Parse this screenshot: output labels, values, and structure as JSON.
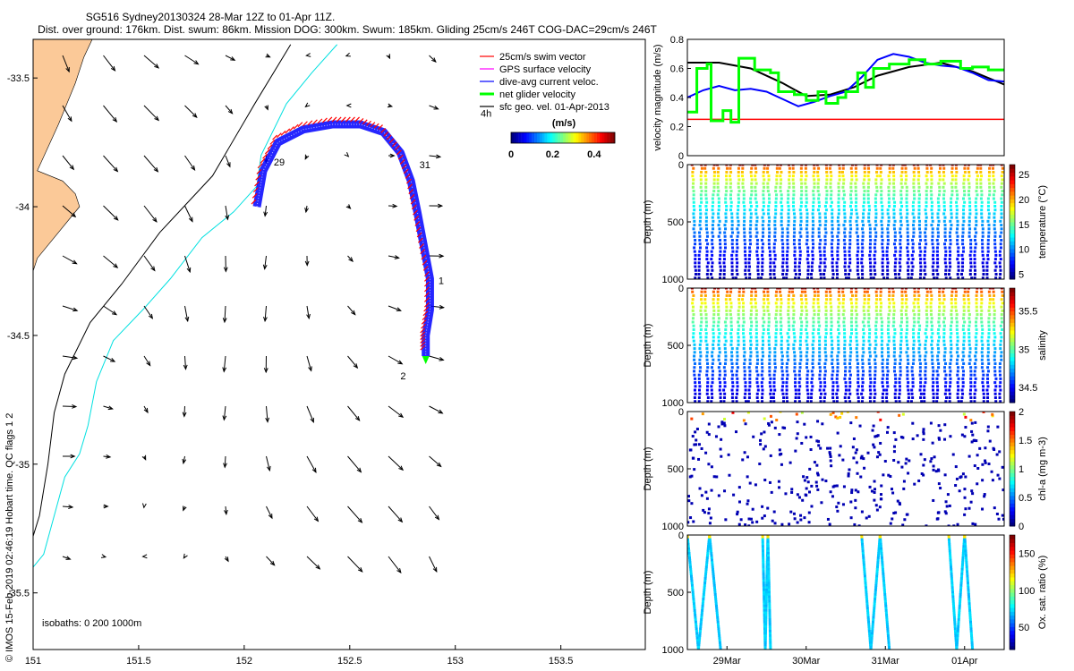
{
  "title": {
    "line1": "SG516 Sydney20130324 28-Mar 12Z to 01-Apr 11Z.",
    "line2": "Dist. over ground: 176km. Dist. swum: 86km. Mission DOG: 300km. Swum: 185km. Gliding 25cm/s 246T COG-DAC=29cm/s 246T"
  },
  "credit": "© IMOS 15-Feb-2019 02:46:19 Hobart time. QC flags 1  2",
  "colors": {
    "coast": "#fbc998",
    "swim": "#ff0000",
    "gps": "#ff00ff",
    "dac": "#0000ff",
    "net": "#00ff00",
    "sfc": "#000000",
    "isobath200": "#000000",
    "isobath1000": "#00e0e0"
  },
  "chart_data": [
    {
      "type": "scatter",
      "name": "map",
      "xlim": [
        151,
        153.9
      ],
      "ylim": [
        -35.72,
        -33.35
      ],
      "xticks": [
        "151",
        "151.5",
        "152",
        "152.5",
        "153",
        "153.5"
      ],
      "xtick_values": [
        151,
        151.5,
        152,
        152.5,
        153,
        153.5
      ],
      "yticks": [
        "-33.5",
        "-34",
        "-34.5",
        "-35",
        "-35.5"
      ],
      "ytick_values": [
        -33.5,
        -34,
        -34.5,
        -35,
        -35.5
      ],
      "legend": [
        {
          "label": "25cm/s swim vector",
          "color": "#ff0000"
        },
        {
          "label": "GPS surface velocity",
          "color": "#ff00ff"
        },
        {
          "label": "dive-avg current veloc.",
          "color": "#0000ff"
        },
        {
          "label": "net glider velocity",
          "color": "#00ff00"
        },
        {
          "label": "sfc geo. vel. 01-Apr-2013",
          "color": "#000000"
        }
      ],
      "colorbar": {
        "label": "(m/s)",
        "ticks": [
          "0",
          "0.2",
          "0.4"
        ],
        "tick_values": [
          0,
          0.2,
          0.4
        ],
        "range": [
          0,
          0.5
        ]
      },
      "annotations": [
        {
          "text": "4h",
          "lon": 153.12,
          "lat": -33.65
        },
        {
          "text": "29",
          "lon": 152.14,
          "lat": -33.84
        },
        {
          "text": "31",
          "lon": 152.83,
          "lat": -33.85
        },
        {
          "text": "1",
          "lon": 152.92,
          "lat": -34.3
        },
        {
          "text": "2",
          "lon": 152.74,
          "lat": -34.67
        }
      ],
      "isobath_label": "isobaths: 0   200   1000m",
      "track": [
        [
          152.06,
          -34.0
        ],
        [
          152.09,
          -33.86
        ],
        [
          152.16,
          -33.75
        ],
        [
          152.28,
          -33.7
        ],
        [
          152.42,
          -33.68
        ],
        [
          152.55,
          -33.68
        ],
        [
          152.66,
          -33.71
        ],
        [
          152.74,
          -33.79
        ],
        [
          152.79,
          -33.9
        ],
        [
          152.82,
          -34.02
        ],
        [
          152.85,
          -34.15
        ],
        [
          152.88,
          -34.28
        ],
        [
          152.88,
          -34.4
        ],
        [
          152.86,
          -34.5
        ],
        [
          152.86,
          -34.58
        ]
      ],
      "isobath_200": [
        [
          152.22,
          -33.37
        ],
        [
          152.05,
          -33.6
        ],
        [
          151.85,
          -33.88
        ],
        [
          151.6,
          -34.1
        ],
        [
          151.42,
          -34.3
        ],
        [
          151.27,
          -34.45
        ],
        [
          151.15,
          -34.65
        ],
        [
          151.1,
          -34.8
        ],
        [
          151.07,
          -35.0
        ],
        [
          151.03,
          -35.2
        ],
        [
          151.0,
          -35.28
        ]
      ],
      "isobath_1000": [
        [
          152.44,
          -33.37
        ],
        [
          152.32,
          -33.48
        ],
        [
          152.2,
          -33.6
        ],
        [
          152.08,
          -33.8
        ],
        [
          152.06,
          -33.92
        ],
        [
          151.95,
          -34.02
        ],
        [
          151.8,
          -34.12
        ],
        [
          151.65,
          -34.28
        ],
        [
          151.52,
          -34.4
        ],
        [
          151.38,
          -34.52
        ],
        [
          151.3,
          -34.68
        ],
        [
          151.26,
          -34.85
        ],
        [
          151.22,
          -34.96
        ],
        [
          151.15,
          -35.05
        ],
        [
          151.1,
          -35.2
        ],
        [
          151.05,
          -35.35
        ],
        [
          151.0,
          -35.4
        ]
      ],
      "coastline": [
        [
          151.0,
          -33.35
        ],
        [
          151.28,
          -33.35
        ],
        [
          151.24,
          -33.42
        ],
        [
          151.2,
          -33.52
        ],
        [
          151.12,
          -33.68
        ],
        [
          151.02,
          -33.86
        ],
        [
          151.14,
          -33.9
        ],
        [
          151.2,
          -33.95
        ],
        [
          151.22,
          -34.0
        ],
        [
          151.12,
          -34.1
        ],
        [
          151.02,
          -34.2
        ],
        [
          151.0,
          -34.25
        ]
      ]
    },
    {
      "type": "line",
      "name": "velocity",
      "ylabel": "velocity magnitude (m/s)",
      "ylim": [
        0,
        0.8
      ],
      "yticks": [
        "0",
        "0.2",
        "0.4",
        "0.6",
        "0.8"
      ],
      "ytick_values": [
        0,
        0.2,
        0.4,
        0.6,
        0.8
      ],
      "xlim": [
        0,
        4
      ],
      "series": [
        {
          "color": "#000000",
          "x": [
            0,
            0.4,
            0.8,
            1.2,
            1.5,
            1.8,
            2.1,
            2.4,
            2.8,
            3.2,
            3.6,
            4.0
          ],
          "y": [
            0.64,
            0.64,
            0.6,
            0.5,
            0.41,
            0.42,
            0.47,
            0.55,
            0.61,
            0.64,
            0.58,
            0.49
          ]
        },
        {
          "color": "#0000ff",
          "x": [
            0,
            0.2,
            0.4,
            0.6,
            0.8,
            1.0,
            1.2,
            1.4,
            1.6,
            1.8,
            2.0,
            2.2,
            2.4,
            2.6,
            2.8,
            3.0,
            3.2,
            3.4,
            3.6,
            3.8,
            4.0
          ],
          "y": [
            0.4,
            0.45,
            0.48,
            0.45,
            0.46,
            0.44,
            0.39,
            0.34,
            0.37,
            0.41,
            0.44,
            0.54,
            0.66,
            0.7,
            0.68,
            0.64,
            0.62,
            0.61,
            0.57,
            0.52,
            0.51
          ]
        },
        {
          "color": "#ff0000",
          "x": [
            0,
            4
          ],
          "y": [
            0.25,
            0.25
          ]
        }
      ],
      "net_steps": [
        [
          0,
          0.3
        ],
        [
          0.12,
          0.3
        ],
        [
          0.12,
          0.6
        ],
        [
          0.25,
          0.6
        ],
        [
          0.25,
          0.63
        ],
        [
          0.3,
          0.63
        ],
        [
          0.3,
          0.24
        ],
        [
          0.45,
          0.24
        ],
        [
          0.45,
          0.31
        ],
        [
          0.55,
          0.31
        ],
        [
          0.55,
          0.23
        ],
        [
          0.65,
          0.23
        ],
        [
          0.65,
          0.67
        ],
        [
          0.85,
          0.67
        ],
        [
          0.85,
          0.59
        ],
        [
          1.05,
          0.59
        ],
        [
          1.05,
          0.57
        ],
        [
          1.15,
          0.57
        ],
        [
          1.15,
          0.44
        ],
        [
          1.35,
          0.44
        ],
        [
          1.35,
          0.42
        ],
        [
          1.5,
          0.42
        ],
        [
          1.5,
          0.38
        ],
        [
          1.65,
          0.38
        ],
        [
          1.65,
          0.44
        ],
        [
          1.75,
          0.44
        ],
        [
          1.75,
          0.36
        ],
        [
          1.9,
          0.36
        ],
        [
          1.9,
          0.4
        ],
        [
          2.0,
          0.4
        ],
        [
          2.0,
          0.44
        ],
        [
          2.15,
          0.44
        ],
        [
          2.15,
          0.57
        ],
        [
          2.25,
          0.57
        ],
        [
          2.25,
          0.47
        ],
        [
          2.35,
          0.47
        ],
        [
          2.35,
          0.6
        ],
        [
          2.55,
          0.6
        ],
        [
          2.55,
          0.63
        ],
        [
          2.8,
          0.63
        ],
        [
          2.8,
          0.66
        ],
        [
          3.0,
          0.66
        ],
        [
          3.0,
          0.63
        ],
        [
          3.2,
          0.63
        ],
        [
          3.2,
          0.65
        ],
        [
          3.45,
          0.65
        ],
        [
          3.45,
          0.6
        ],
        [
          3.6,
          0.6
        ],
        [
          3.6,
          0.61
        ],
        [
          3.8,
          0.61
        ],
        [
          3.8,
          0.59
        ],
        [
          4.0,
          0.59
        ]
      ]
    },
    {
      "type": "scatter",
      "name": "temperature",
      "ylabel": "Depth (m)",
      "colorbar_label": "temperature (°C)",
      "colorbar_ticks": [
        "5",
        "10",
        "15",
        "20",
        "25"
      ],
      "colorbar_values": [
        5,
        10,
        15,
        20,
        25
      ],
      "crange": [
        4,
        27
      ],
      "yticks": [
        "0",
        "500",
        "1000"
      ],
      "ytick_values": [
        0,
        500,
        1000
      ],
      "profiles": 50,
      "max_depth": 1000
    },
    {
      "type": "scatter",
      "name": "salinity",
      "ylabel": "Depth (m)",
      "colorbar_label": "salinity",
      "colorbar_ticks": [
        "34.5",
        "35",
        "35.5"
      ],
      "colorbar_values": [
        34.5,
        35,
        35.5
      ],
      "crange": [
        34.3,
        35.8
      ],
      "yticks": [
        "0",
        "500",
        "1000"
      ],
      "ytick_values": [
        0,
        500,
        1000
      ],
      "profiles": 50,
      "max_depth": 1000
    },
    {
      "type": "scatter",
      "name": "chlorophyll",
      "ylabel": "Depth (m)",
      "colorbar_label": "chl-a (mg m-3)",
      "colorbar_ticks": [
        "0",
        "0.5",
        "1",
        "1.5",
        "2"
      ],
      "colorbar_values": [
        0,
        0.5,
        1,
        1.5,
        2
      ],
      "crange": [
        0,
        2
      ],
      "yticks": [
        "0",
        "500",
        "1000"
      ],
      "ytick_values": [
        0,
        500,
        1000
      ],
      "profiles": 50,
      "max_depth": 1000
    },
    {
      "type": "scatter",
      "name": "oxygen",
      "ylabel": "Depth (m)",
      "colorbar_label": "Ox. sat. ratio (%)",
      "colorbar_ticks": [
        "50",
        "100",
        "150"
      ],
      "colorbar_values": [
        50,
        100,
        150
      ],
      "crange": [
        20,
        175
      ],
      "yticks": [
        "0",
        "500",
        "1000"
      ],
      "ytick_values": [
        0,
        500,
        1000
      ],
      "xticks": [
        "29Mar",
        "30Mar",
        "31Mar",
        "01Apr"
      ],
      "xtick_values": [
        0.5,
        1.5,
        2.5,
        3.5
      ],
      "profile_groups": [
        [
          0.0,
          0.42
        ],
        [
          0.95,
          1.05
        ],
        [
          2.2,
          2.55
        ],
        [
          3.3,
          3.6
        ]
      ],
      "max_depth": 1000
    }
  ]
}
